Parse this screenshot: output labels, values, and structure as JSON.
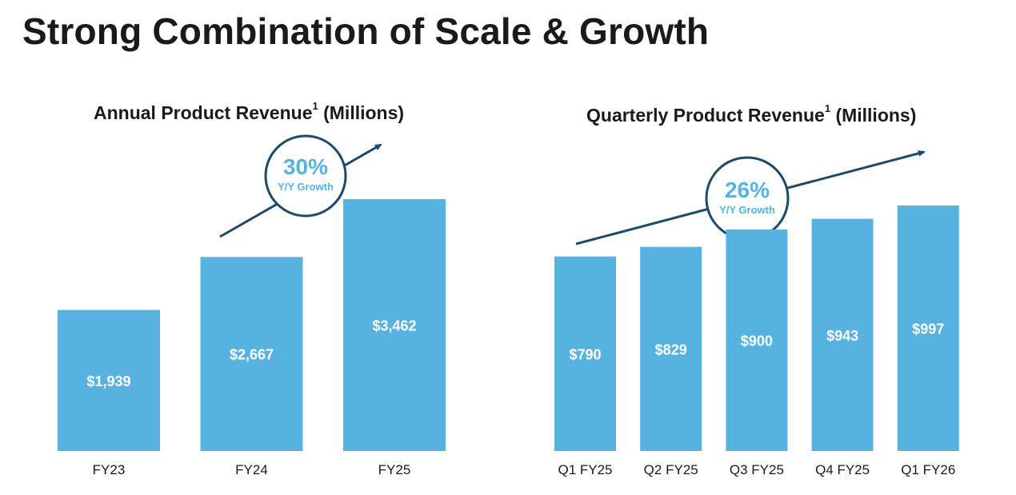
{
  "page": {
    "title": "Strong Combination of Scale & Growth"
  },
  "colors": {
    "bar": "#58b2e0",
    "arrow": "#1d4a6c",
    "badge_text": "#58b2e0",
    "badge_border": "#1d4a6c"
  },
  "chart_data": [
    {
      "type": "bar",
      "title": "Annual Product Revenue",
      "title_sup": "1",
      "title_suffix": "(Millions)",
      "categories": [
        "FY23",
        "FY24",
        "FY25"
      ],
      "values": [
        1939,
        2667,
        3462
      ],
      "value_labels": [
        "$1,939",
        "$2,667",
        "$3,462"
      ],
      "ylim": [
        0,
        3462
      ],
      "grid": false,
      "annotation": {
        "value": "30%",
        "label": "Y/Y Growth"
      }
    },
    {
      "type": "bar",
      "title": "Quarterly Product Revenue",
      "title_sup": "1",
      "title_suffix": "(Millions)",
      "categories": [
        "Q1 FY25",
        "Q2 FY25",
        "Q3 FY25",
        "Q4 FY25",
        "Q1 FY26"
      ],
      "values": [
        790,
        829,
        900,
        943,
        997
      ],
      "value_labels": [
        "$790",
        "$829",
        "$900",
        "$943",
        "$997"
      ],
      "ylim": [
        0,
        997
      ],
      "grid": false,
      "annotation": {
        "value": "26%",
        "label": "Y/Y Growth"
      }
    }
  ]
}
